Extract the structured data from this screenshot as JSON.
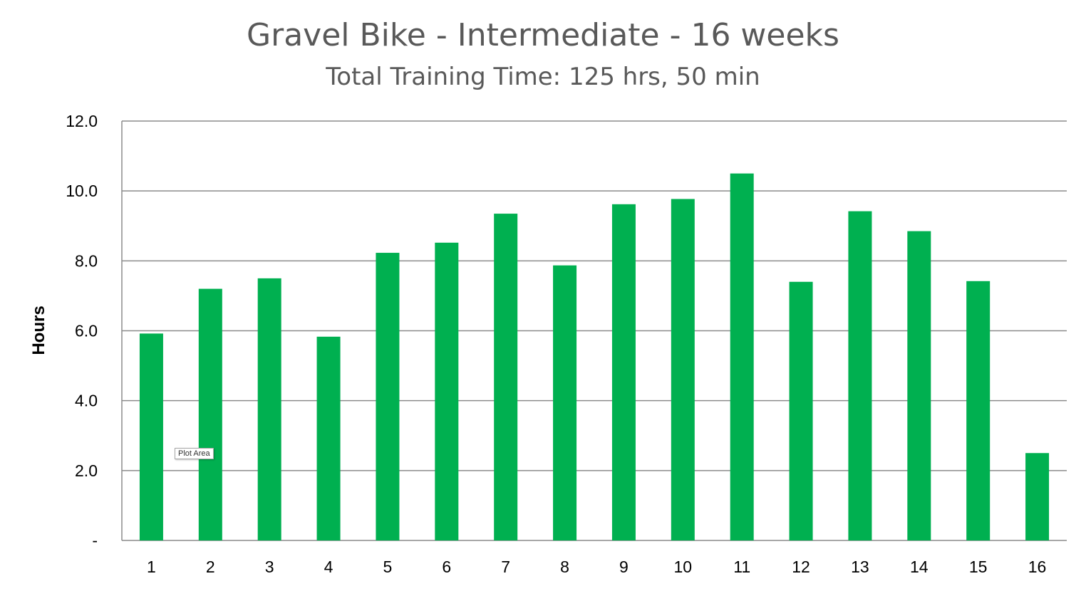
{
  "chart_data": {
    "type": "bar",
    "title": "Gravel Bike - Intermediate - 16 weeks",
    "subtitle": "Total Training Time: 125 hrs, 50 min",
    "xlabel": "",
    "ylabel": "Hours",
    "categories": [
      "1",
      "2",
      "3",
      "4",
      "5",
      "6",
      "7",
      "8",
      "9",
      "10",
      "11",
      "12",
      "13",
      "14",
      "15",
      "16"
    ],
    "values": [
      5.92,
      7.2,
      7.5,
      5.83,
      8.23,
      8.52,
      9.35,
      7.87,
      9.62,
      9.77,
      10.5,
      7.4,
      9.42,
      8.85,
      7.42,
      2.5
    ],
    "ylim": [
      0,
      12
    ],
    "yticks": [
      0,
      2,
      4,
      6,
      8,
      10,
      12
    ],
    "ytick_labels": [
      "-",
      "2.0",
      "4.0",
      "6.0",
      "8.0",
      "10.0",
      "12.0"
    ],
    "grid": true,
    "bar_color": "#00B050",
    "grid_color": "#8c8c8c",
    "legend": "none"
  },
  "tooltip": {
    "label": "Plot Area"
  }
}
